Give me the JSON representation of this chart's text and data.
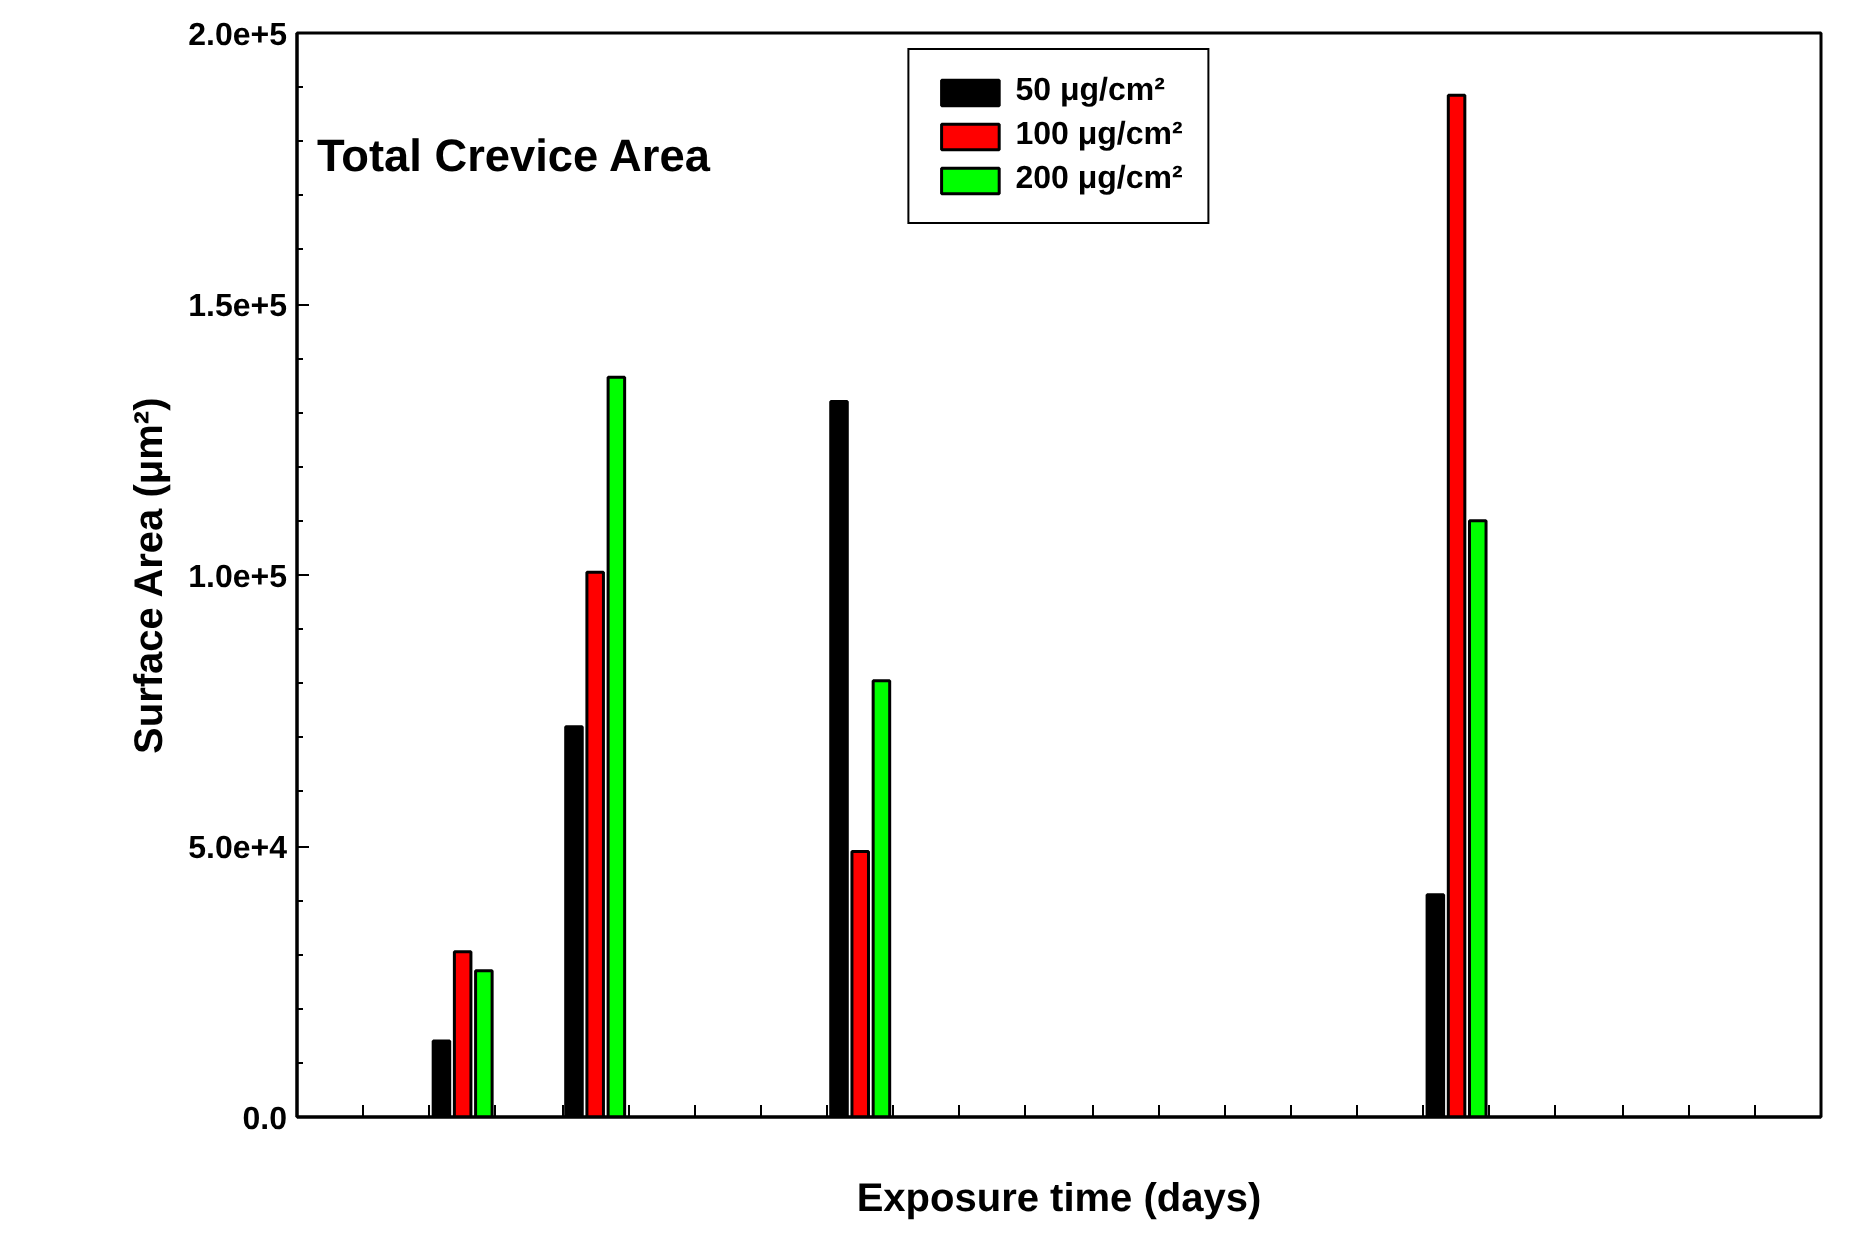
{
  "chart_data": {
    "type": "bar",
    "title": "Total Crevice Area",
    "xlabel": "Exposure time (days)",
    "ylabel": "Surface Area (μm²)",
    "categories": [
      null,
      null,
      null,
      null,
      null,
      null,
      null,
      null,
      null,
      null,
      null,
      null,
      null,
      null,
      null,
      null,
      null,
      null,
      null,
      null,
      null,
      null,
      null
    ],
    "series": [
      {
        "name": "50 μg/cm²",
        "color": "#000000",
        "values": [
          null,
          null,
          14000,
          null,
          72000,
          null,
          null,
          null,
          132000,
          null,
          null,
          null,
          null,
          null,
          null,
          null,
          null,
          41000,
          null,
          null,
          null,
          null,
          null
        ]
      },
      {
        "name": "100 μg/cm²",
        "color": "#ff0000",
        "values": [
          null,
          null,
          30500,
          null,
          100500,
          null,
          null,
          null,
          49000,
          null,
          null,
          null,
          null,
          null,
          null,
          null,
          null,
          188500,
          null,
          null,
          null,
          null,
          null
        ]
      },
      {
        "name": "200 μg/cm²",
        "color": "#00ff00",
        "values": [
          null,
          null,
          27000,
          null,
          136500,
          null,
          null,
          null,
          80500,
          null,
          null,
          null,
          null,
          null,
          null,
          null,
          null,
          110000,
          null,
          null,
          null,
          null,
          null
        ]
      }
    ],
    "ylim": [
      0,
      200000
    ],
    "yticks": [
      {
        "value": 0,
        "label": "0.0"
      },
      {
        "value": 50000,
        "label": "5.0e+4"
      },
      {
        "value": 100000,
        "label": "1.0e+5"
      },
      {
        "value": 150000,
        "label": "1.5e+5"
      },
      {
        "value": 200000,
        "label": "2.0e+5"
      }
    ],
    "tick_labels": "y",
    "grid": false,
    "legend": "top"
  }
}
